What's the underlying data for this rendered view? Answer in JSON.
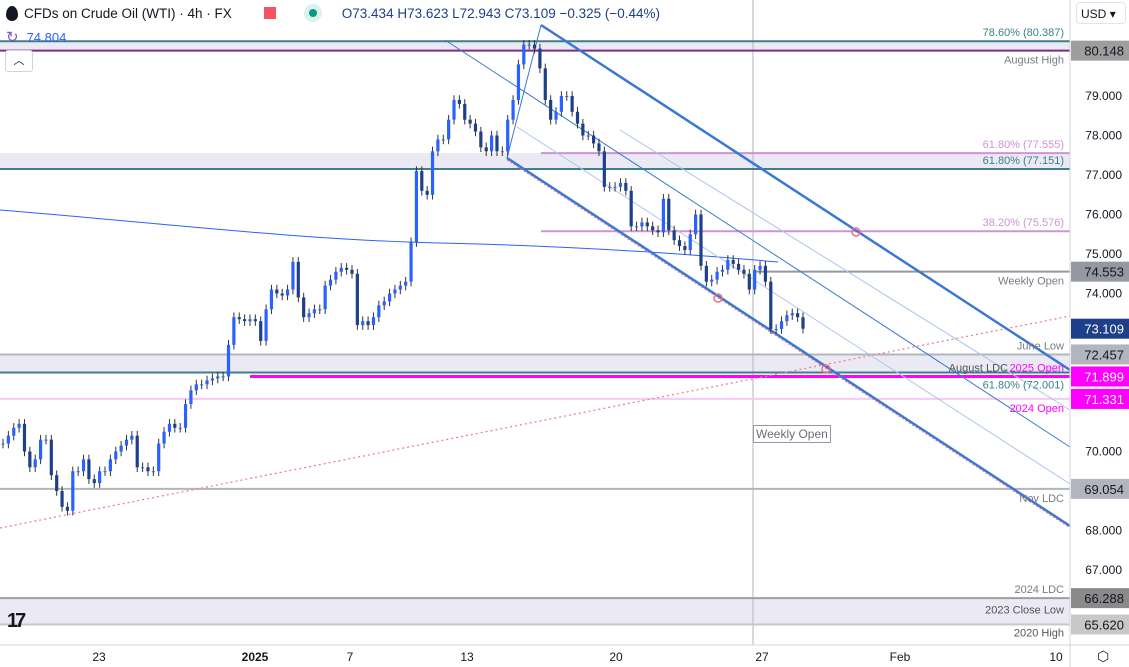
{
  "header": {
    "title": "CFDs on Crude Oil (WTI) · 4h · FX",
    "ohlc": "O73.434 H73.623 L72.943 C73.109 −0.325 (−0.44%)",
    "indicator_value": "74.804",
    "currency": "USD",
    "up_arrow_icon": "chevron-up-icon",
    "settings_icon": "gear-icon"
  },
  "colors": {
    "up": "#2962ff",
    "down": "#1e3f8a",
    "teal": "#3d7f8a",
    "purple": "#7b2d8e",
    "fib_pink": "#ce93d8",
    "magenta": "#ff00ff",
    "gray": "#9598a1",
    "ma": "#2962ff",
    "channel": "#3a78d4",
    "dotted": "#f08090"
  },
  "chart_data": {
    "type": "candlestick",
    "title": "CFDs on Crude Oil (WTI) · 4h · FX",
    "x_ticks": [
      "23",
      "2025",
      "7",
      "13",
      "20",
      "27",
      "Feb",
      "10"
    ],
    "y_ticks": [
      "79.000",
      "78.000",
      "77.000",
      "76.000",
      "75.000",
      "74.000",
      "70.000",
      "68.000",
      "67.000"
    ],
    "ylim": [
      65.2,
      81.4
    ],
    "grid": false,
    "closes": [
      70.2,
      70.4,
      70.6,
      70.7,
      70.0,
      69.6,
      69.8,
      70.3,
      70.3,
      69.4,
      69.0,
      68.6,
      68.5,
      69.5,
      69.5,
      69.8,
      69.3,
      69.2,
      69.5,
      69.5,
      69.8,
      70.0,
      70.15,
      70.3,
      70.4,
      69.6,
      69.6,
      69.5,
      69.5,
      70.2,
      70.5,
      70.7,
      70.6,
      70.6,
      71.2,
      71.55,
      71.7,
      71.7,
      71.8,
      71.85,
      71.9,
      71.9,
      72.7,
      73.4,
      73.35,
      73.3,
      73.35,
      73.3,
      72.8,
      73.6,
      74.1,
      74.0,
      73.95,
      74.1,
      74.8,
      73.9,
      73.4,
      73.5,
      73.6,
      73.6,
      74.2,
      74.35,
      74.55,
      74.65,
      74.6,
      74.5,
      73.2,
      73.3,
      73.2,
      73.4,
      73.7,
      73.8,
      74.0,
      74.1,
      74.2,
      74.3,
      75.3,
      77.1,
      76.6,
      76.5,
      77.6,
      77.9,
      77.9,
      78.4,
      78.9,
      78.8,
      78.4,
      78.3,
      78.1,
      77.7,
      77.6,
      78.0,
      77.6,
      77.6,
      78.4,
      78.9,
      79.8,
      80.3,
      80.3,
      80.2,
      79.7,
      78.9,
      78.4,
      78.6,
      79.0,
      79.0,
      78.6,
      78.3,
      78.0,
      78.0,
      77.8,
      77.6,
      76.7,
      76.7,
      76.7,
      76.8,
      76.6,
      75.7,
      75.7,
      75.8,
      75.7,
      75.6,
      75.55,
      76.4,
      75.6,
      75.35,
      75.2,
      75.1,
      75.5,
      76.0,
      74.7,
      74.3,
      74.35,
      74.55,
      74.6,
      74.85,
      74.75,
      74.6,
      74.5,
      74.1,
      74.6,
      74.7,
      74.3,
      73.1,
      73.1,
      73.3,
      73.45,
      73.5,
      73.4,
      73.109
    ],
    "levels": [
      {
        "price": 80.387,
        "label": "78.60% (80.387)",
        "color": "#3d7f8a",
        "badge": ""
      },
      {
        "price": 80.148,
        "label": "August High",
        "color": "#7b2d8e",
        "badge": "80.148",
        "badge_bg": "#9e9e9e",
        "badge_fg": "#131722"
      },
      {
        "price": 77.555,
        "label": "61.80% (77.555)",
        "color": "#ce93d8",
        "badge": ""
      },
      {
        "price": 77.151,
        "label": "61.80% (77.151)",
        "color": "#3d7f8a",
        "badge": ""
      },
      {
        "price": 75.576,
        "label": "38.20% (75.576)",
        "color": "#ce93d8",
        "badge": ""
      },
      {
        "price": 74.553,
        "label": "Weekly Open",
        "color": "#9598a1",
        "badge": "74.553",
        "badge_bg": "#9598a1",
        "badge_fg": "#131722"
      },
      {
        "price": 73.109,
        "label": "",
        "color": "",
        "badge": "73.109",
        "badge_bg": "#1e3f8a",
        "badge_fg": "#ffffff"
      },
      {
        "price": 72.457,
        "label": "June Low",
        "color": "#b2b5be",
        "badge": "72.457",
        "badge_bg": "#b2b5be",
        "badge_fg": "#131722"
      },
      {
        "price": 72.001,
        "label": "61.80% (72.001)",
        "color": "#3d7f8a",
        "badge": ""
      },
      {
        "price": 71.899,
        "label": "August LDC",
        "label2": "2025 Open",
        "color": "#ff00ff",
        "badge": "71.899",
        "badge_bg": "#ff00ff",
        "badge_fg": "#ffffff"
      },
      {
        "price": 71.331,
        "label": "2024 Open",
        "color": "#f8c8f8",
        "badge": "71.331",
        "badge_bg": "#ff00ff",
        "badge_fg": "#ffffff"
      },
      {
        "price": 69.054,
        "label": "Nov LDC",
        "color": "#b2b5be",
        "badge": "69.054",
        "badge_bg": "#b2b5be",
        "badge_fg": "#131722"
      },
      {
        "price": 66.288,
        "label": "2024 LDC",
        "color": "#9e9e9e",
        "badge": "66.288",
        "badge_bg": "#8a8a8a",
        "badge_fg": "#131722"
      },
      {
        "price": 65.62,
        "label": "2023 Close Low",
        "label2": "2020 High",
        "color": "#c8c8c8",
        "badge": "65.620",
        "badge_bg": "#c8c8c8",
        "badge_fg": "#131722"
      }
    ],
    "weekly_open_marker": "Weekly Open"
  }
}
